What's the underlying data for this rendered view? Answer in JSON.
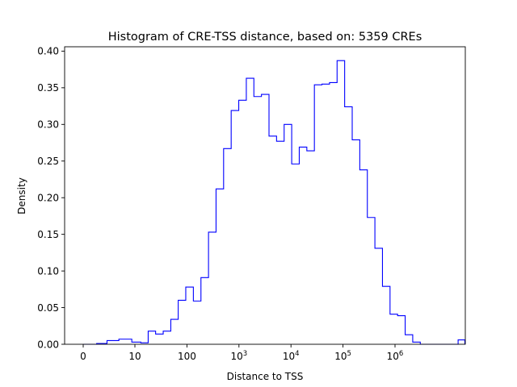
{
  "chart_data": {
    "type": "histogram-step",
    "title": "Histogram of CRE-TSS distance, based on: 5359 CREs",
    "xlabel": "Distance to TSS",
    "ylabel": "Density",
    "x_scale": "symlog (linear below 10, log above)",
    "xlim": [
      -4,
      35000000
    ],
    "ylim": [
      0,
      0.405
    ],
    "x_ticks": [
      {
        "value": 0,
        "label": "0"
      },
      {
        "value": 10,
        "label": "10"
      },
      {
        "value": 100,
        "label": "100"
      },
      {
        "value": 1000,
        "base": "10",
        "exp": "3"
      },
      {
        "value": 10000,
        "base": "10",
        "exp": "4"
      },
      {
        "value": 100000,
        "base": "10",
        "exp": "5"
      },
      {
        "value": 1000000,
        "base": "10",
        "exp": "6"
      }
    ],
    "y_ticks": [
      "0.00",
      "0.05",
      "0.10",
      "0.15",
      "0.20",
      "0.25",
      "0.30",
      "0.35",
      "0.40"
    ],
    "line_color": "#0000ff",
    "x_start": 0,
    "x_end": 22000000,
    "x_end_pixel_hint": "right end of last bin",
    "bin_edges_x": [
      0,
      2.6,
      4.6,
      6.9,
      9.4,
      13,
      18,
      25,
      35,
      49,
      68,
      95,
      133,
      186,
      260,
      363,
      507,
      709,
      991,
      1385,
      1936,
      2706,
      3782,
      5286,
      7388,
      10326,
      14432,
      20171,
      28192,
      39403,
      55072,
      76972,
      107580,
      150360,
      210150,
      293720,
      410520,
      573760,
      801920,
      1120800,
      1566500,
      2189400,
      3060100,
      4277000,
      5977800,
      8355000,
      11677000,
      16321000,
      22000000
    ],
    "densities": [
      0.0,
      0.001,
      0.005,
      0.007,
      0.003,
      0.002,
      0.018,
      0.014,
      0.018,
      0.034,
      0.06,
      0.078,
      0.059,
      0.091,
      0.153,
      0.212,
      0.267,
      0.319,
      0.333,
      0.363,
      0.338,
      0.341,
      0.284,
      0.277,
      0.3,
      0.246,
      0.269,
      0.264,
      0.354,
      0.355,
      0.357,
      0.387,
      0.324,
      0.279,
      0.238,
      0.173,
      0.131,
      0.079,
      0.041,
      0.039,
      0.013,
      0.003,
      0.0,
      0.0,
      0.0,
      0.0,
      0.0,
      0.006
    ]
  }
}
